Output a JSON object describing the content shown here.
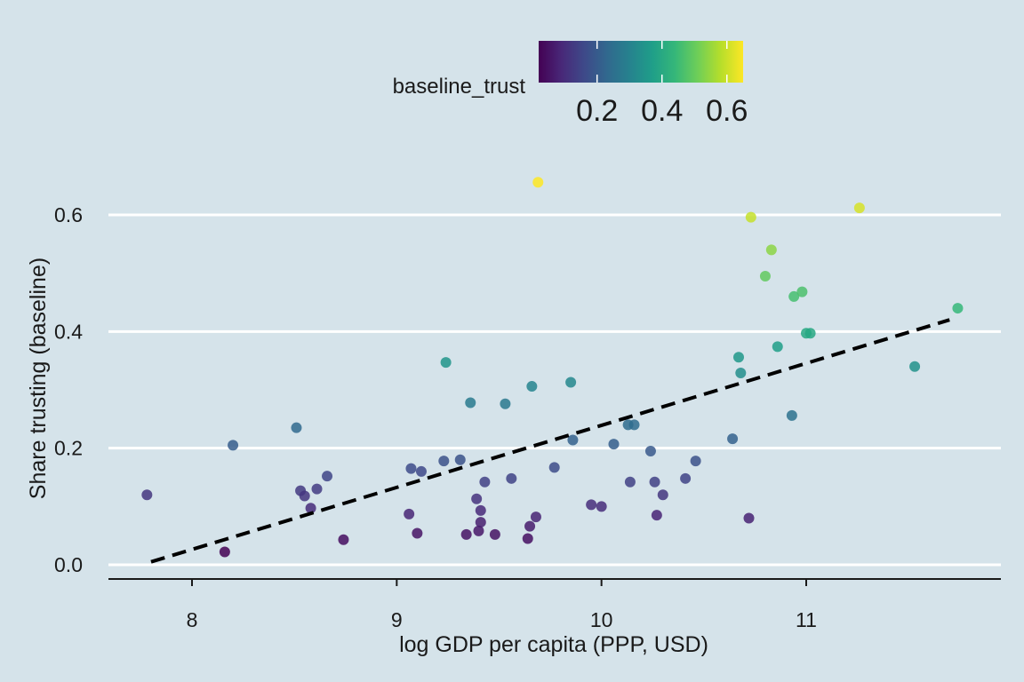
{
  "chart_data": {
    "type": "scatter",
    "title": "",
    "xlabel": "log GDP per capita (PPP, USD)",
    "ylabel": "Share trusting (baseline)",
    "xlim": [
      7.6,
      11.95
    ],
    "ylim": [
      -0.02,
      0.7
    ],
    "xticks": [
      "8",
      "9",
      "10",
      "11"
    ],
    "yticks": [
      "0.0",
      "0.2",
      "0.4",
      "0.6"
    ],
    "grid": "horizontal major lines",
    "background": "#d5e3ea",
    "legend": {
      "title": "baseline_trust",
      "position": "top",
      "type": "colorbar",
      "range": [
        0.02,
        0.65
      ],
      "ticks": [
        "0.2",
        "0.4",
        "0.6"
      ],
      "palette": [
        "#440154",
        "#482878",
        "#3e4989",
        "#31688e",
        "#26828e",
        "#1f9e89",
        "#35b779",
        "#6ece58",
        "#b5de2b",
        "#fde725"
      ]
    },
    "trend_line": {
      "style": "dashed",
      "color": "#000000",
      "x": [
        7.8,
        11.7
      ],
      "y": [
        0.005,
        0.42
      ]
    },
    "points": [
      {
        "x": 7.78,
        "y": 0.12
      },
      {
        "x": 8.16,
        "y": 0.022
      },
      {
        "x": 8.2,
        "y": 0.205
      },
      {
        "x": 8.51,
        "y": 0.235
      },
      {
        "x": 8.53,
        "y": 0.127
      },
      {
        "x": 8.55,
        "y": 0.118
      },
      {
        "x": 8.58,
        "y": 0.097
      },
      {
        "x": 8.61,
        "y": 0.13
      },
      {
        "x": 8.66,
        "y": 0.152
      },
      {
        "x": 8.74,
        "y": 0.043
      },
      {
        "x": 9.06,
        "y": 0.087
      },
      {
        "x": 9.07,
        "y": 0.165
      },
      {
        "x": 9.1,
        "y": 0.054
      },
      {
        "x": 9.12,
        "y": 0.16
      },
      {
        "x": 9.23,
        "y": 0.178
      },
      {
        "x": 9.24,
        "y": 0.347
      },
      {
        "x": 9.31,
        "y": 0.18
      },
      {
        "x": 9.34,
        "y": 0.052
      },
      {
        "x": 9.36,
        "y": 0.278
      },
      {
        "x": 9.39,
        "y": 0.113
      },
      {
        "x": 9.4,
        "y": 0.058
      },
      {
        "x": 9.41,
        "y": 0.093
      },
      {
        "x": 9.41,
        "y": 0.073
      },
      {
        "x": 9.43,
        "y": 0.142
      },
      {
        "x": 9.48,
        "y": 0.052
      },
      {
        "x": 9.53,
        "y": 0.276
      },
      {
        "x": 9.56,
        "y": 0.148
      },
      {
        "x": 9.64,
        "y": 0.045
      },
      {
        "x": 9.65,
        "y": 0.066
      },
      {
        "x": 9.66,
        "y": 0.306
      },
      {
        "x": 9.68,
        "y": 0.082
      },
      {
        "x": 9.69,
        "y": 0.656
      },
      {
        "x": 9.77,
        "y": 0.167
      },
      {
        "x": 9.85,
        "y": 0.313
      },
      {
        "x": 9.86,
        "y": 0.214
      },
      {
        "x": 9.95,
        "y": 0.103
      },
      {
        "x": 10.0,
        "y": 0.1
      },
      {
        "x": 10.06,
        "y": 0.207
      },
      {
        "x": 10.13,
        "y": 0.24
      },
      {
        "x": 10.14,
        "y": 0.142
      },
      {
        "x": 10.16,
        "y": 0.24
      },
      {
        "x": 10.24,
        "y": 0.195
      },
      {
        "x": 10.26,
        "y": 0.142
      },
      {
        "x": 10.27,
        "y": 0.085
      },
      {
        "x": 10.3,
        "y": 0.12
      },
      {
        "x": 10.41,
        "y": 0.148
      },
      {
        "x": 10.46,
        "y": 0.178
      },
      {
        "x": 10.64,
        "y": 0.216
      },
      {
        "x": 10.67,
        "y": 0.356
      },
      {
        "x": 10.68,
        "y": 0.329
      },
      {
        "x": 10.72,
        "y": 0.08
      },
      {
        "x": 10.73,
        "y": 0.596
      },
      {
        "x": 10.8,
        "y": 0.495
      },
      {
        "x": 10.83,
        "y": 0.54
      },
      {
        "x": 10.86,
        "y": 0.374
      },
      {
        "x": 10.93,
        "y": 0.256
      },
      {
        "x": 10.94,
        "y": 0.46
      },
      {
        "x": 10.98,
        "y": 0.468
      },
      {
        "x": 11.0,
        "y": 0.397
      },
      {
        "x": 11.02,
        "y": 0.397
      },
      {
        "x": 11.26,
        "y": 0.612
      },
      {
        "x": 11.53,
        "y": 0.34
      },
      {
        "x": 11.74,
        "y": 0.44
      }
    ]
  }
}
